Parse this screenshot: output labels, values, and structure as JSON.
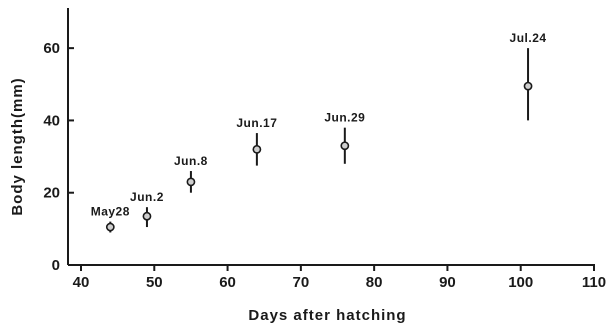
{
  "chart_data": {
    "type": "scatter",
    "title": "",
    "xlabel": "Days after hatching",
    "ylabel": "Body length(mm)",
    "xlim": [
      40,
      110
    ],
    "ylim": [
      0,
      70
    ],
    "xticks": [
      40,
      50,
      60,
      70,
      80,
      90,
      100,
      110
    ],
    "yticks": [
      0,
      20,
      40,
      60
    ],
    "grid": false,
    "points": [
      {
        "label": "May28",
        "x": 44,
        "y": 10.5,
        "err_low": 9.0,
        "err_high": 12.0
      },
      {
        "label": "Jun.2",
        "x": 49,
        "y": 13.5,
        "err_low": 10.5,
        "err_high": 16.0
      },
      {
        "label": "Jun.8",
        "x": 55,
        "y": 23.0,
        "err_low": 20.0,
        "err_high": 26.0
      },
      {
        "label": "Jun.17",
        "x": 64,
        "y": 32.0,
        "err_low": 27.5,
        "err_high": 36.5
      },
      {
        "label": "Jun.29",
        "x": 76,
        "y": 33.0,
        "err_low": 28.0,
        "err_high": 38.0
      },
      {
        "label": "Jul.24",
        "x": 101,
        "y": 49.5,
        "err_low": 40.0,
        "err_high": 60.0
      }
    ]
  }
}
